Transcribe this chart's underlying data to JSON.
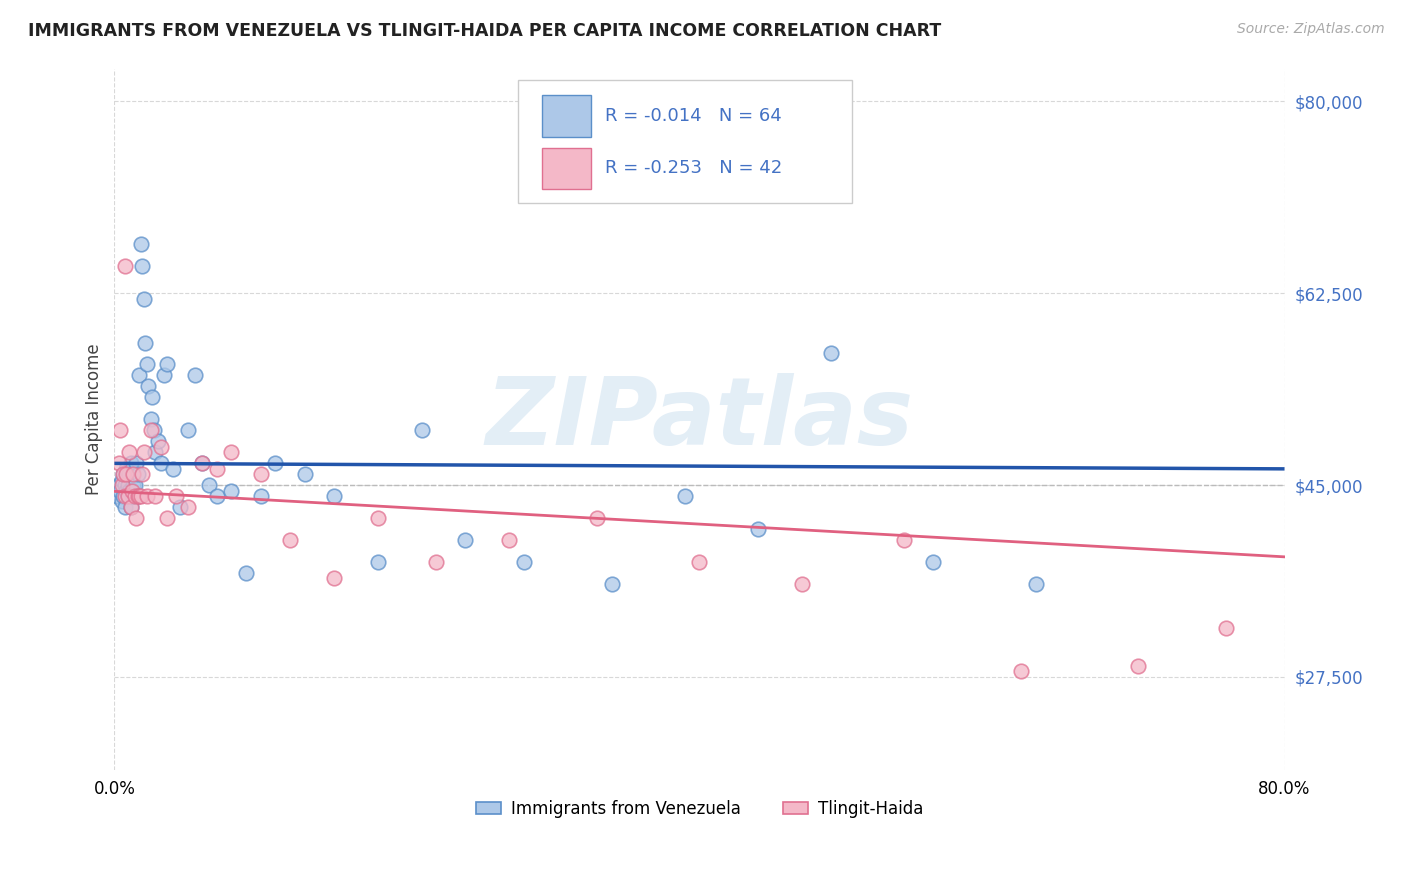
{
  "title": "IMMIGRANTS FROM VENEZUELA VS TLINGIT-HAIDA PER CAPITA INCOME CORRELATION CHART",
  "source": "Source: ZipAtlas.com",
  "ylabel": "Per Capita Income",
  "legend_label1": "Immigrants from Venezuela",
  "legend_label2": "Tlingit-Haida",
  "R1": -0.014,
  "N1": 64,
  "R2": -0.253,
  "N2": 42,
  "blue_fill": "#adc8e8",
  "blue_edge": "#5b8fc9",
  "pink_fill": "#f4b8c8",
  "pink_edge": "#e07090",
  "blue_line": "#2255aa",
  "pink_line": "#e06080",
  "watermark": "ZIPatlas",
  "watermark_color": "#cce0f0",
  "xlim_lo": 0.0,
  "xlim_hi": 0.8,
  "ylim_lo": 19000,
  "ylim_hi": 83000,
  "yticks": [
    27500,
    45000,
    62500,
    80000
  ],
  "ytick_labels": [
    "$27,500",
    "$45,000",
    "$62,500",
    "$80,000"
  ],
  "grid_color": "#d8d8d8",
  "title_fontsize": 12.5,
  "axis_fontsize": 12,
  "tick_color": "#4472c4",
  "blue_x": [
    0.002,
    0.003,
    0.004,
    0.005,
    0.005,
    0.006,
    0.006,
    0.007,
    0.007,
    0.008,
    0.008,
    0.009,
    0.009,
    0.01,
    0.01,
    0.011,
    0.011,
    0.012,
    0.012,
    0.013,
    0.013,
    0.014,
    0.015,
    0.015,
    0.016,
    0.016,
    0.017,
    0.018,
    0.019,
    0.02,
    0.021,
    0.022,
    0.023,
    0.025,
    0.026,
    0.027,
    0.028,
    0.03,
    0.032,
    0.034,
    0.036,
    0.04,
    0.045,
    0.05,
    0.055,
    0.06,
    0.065,
    0.07,
    0.08,
    0.09,
    0.1,
    0.11,
    0.13,
    0.15,
    0.18,
    0.21,
    0.24,
    0.28,
    0.34,
    0.39,
    0.44,
    0.49,
    0.56,
    0.63
  ],
  "blue_y": [
    44000,
    45000,
    44500,
    43500,
    45500,
    44000,
    46000,
    45000,
    43000,
    44500,
    46500,
    45000,
    44000,
    46000,
    44500,
    43000,
    47000,
    46000,
    44000,
    45000,
    44000,
    45000,
    44000,
    47000,
    44000,
    46000,
    55000,
    67000,
    65000,
    62000,
    58000,
    56000,
    54000,
    51000,
    53000,
    50000,
    48000,
    49000,
    47000,
    55000,
    56000,
    46500,
    43000,
    50000,
    55000,
    47000,
    45000,
    44000,
    44500,
    37000,
    44000,
    47000,
    46000,
    44000,
    38000,
    50000,
    40000,
    38000,
    36000,
    44000,
    41000,
    57000,
    38000,
    36000
  ],
  "pink_x": [
    0.003,
    0.004,
    0.005,
    0.006,
    0.007,
    0.007,
    0.008,
    0.009,
    0.01,
    0.011,
    0.012,
    0.013,
    0.014,
    0.015,
    0.016,
    0.017,
    0.018,
    0.019,
    0.02,
    0.022,
    0.025,
    0.028,
    0.032,
    0.036,
    0.042,
    0.05,
    0.06,
    0.07,
    0.08,
    0.1,
    0.12,
    0.15,
    0.18,
    0.22,
    0.27,
    0.33,
    0.4,
    0.47,
    0.54,
    0.62,
    0.7,
    0.76
  ],
  "pink_y": [
    47000,
    50000,
    45000,
    46000,
    44000,
    65000,
    46000,
    44000,
    48000,
    43000,
    44500,
    46000,
    44000,
    42000,
    44000,
    44000,
    44000,
    46000,
    48000,
    44000,
    50000,
    44000,
    48500,
    42000,
    44000,
    43000,
    47000,
    46500,
    48000,
    46000,
    40000,
    36500,
    42000,
    38000,
    40000,
    42000,
    38000,
    36000,
    40000,
    28000,
    28500,
    32000
  ]
}
